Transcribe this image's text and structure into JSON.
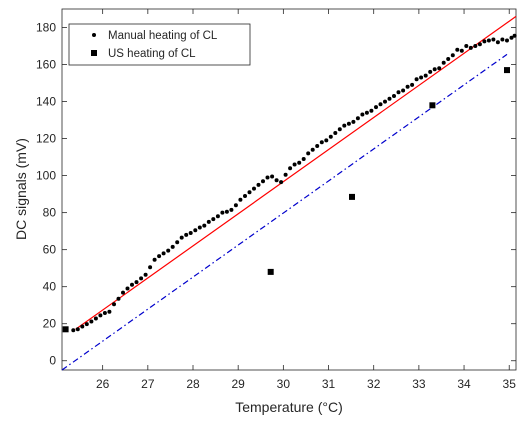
{
  "chart_data": {
    "type": "scatter",
    "xlabel": "Temperature (°C)",
    "ylabel": "DC signals (mV)",
    "xlim": [
      25.1,
      35.15
    ],
    "ylim": [
      -5,
      190
    ],
    "xticks": [
      26,
      27,
      28,
      29,
      30,
      31,
      32,
      33,
      34,
      35
    ],
    "yticks": [
      0,
      20,
      40,
      60,
      80,
      100,
      120,
      140,
      160,
      180
    ],
    "grid": false,
    "legend_position": "top-left",
    "colors": {
      "manual": "#000000",
      "us": "#000000",
      "fit_line": "#ff0000",
      "dash_dot_line": "#0000cc",
      "axes": "#262626"
    },
    "legend": [
      {
        "label": "Manual heating of CL",
        "marker": "dot"
      },
      {
        "label": "US heating of CL",
        "marker": "square"
      }
    ],
    "series": [
      {
        "name": "Manual heating of CL",
        "marker": "dot",
        "x": [
          25.35,
          25.45,
          25.55,
          25.65,
          25.75,
          25.85,
          25.95,
          26.05,
          26.15,
          26.25,
          26.35,
          26.45,
          26.55,
          26.65,
          26.75,
          26.85,
          26.95,
          27.05,
          27.15,
          27.25,
          27.35,
          27.45,
          27.55,
          27.65,
          27.75,
          27.85,
          27.95,
          28.05,
          28.15,
          28.25,
          28.35,
          28.45,
          28.55,
          28.65,
          28.75,
          28.85,
          28.95,
          29.05,
          29.15,
          29.25,
          29.35,
          29.45,
          29.55,
          29.65,
          29.75,
          29.85,
          29.95,
          30.05,
          30.15,
          30.25,
          30.35,
          30.45,
          30.55,
          30.65,
          30.75,
          30.85,
          30.95,
          31.05,
          31.15,
          31.25,
          31.35,
          31.45,
          31.55,
          31.65,
          31.75,
          31.85,
          31.95,
          32.05,
          32.15,
          32.25,
          32.35,
          32.45,
          32.55,
          32.65,
          32.75,
          32.85,
          32.95,
          33.05,
          33.15,
          33.25,
          33.35,
          33.45,
          33.55,
          33.65,
          33.75,
          33.85,
          33.95,
          34.05,
          34.15,
          34.25,
          34.35,
          34.45,
          34.55,
          34.65,
          34.75,
          34.85,
          34.95,
          35.05,
          35.12
        ],
        "y": [
          16.5,
          17.0,
          18.5,
          19.8,
          21.2,
          22.8,
          24.5,
          25.8,
          26.5,
          30.5,
          33.5,
          36.8,
          39.0,
          41.0,
          42.5,
          44.5,
          46.5,
          50.5,
          54.5,
          56.5,
          58.0,
          59.5,
          61.5,
          64.0,
          66.5,
          68.0,
          69.0,
          70.5,
          72.0,
          73.0,
          75.0,
          76.5,
          78.0,
          80.0,
          80.5,
          81.5,
          84.0,
          87.0,
          89.0,
          91.0,
          93.0,
          95.0,
          97.0,
          99.0,
          99.5,
          97.5,
          96.5,
          100.5,
          104.0,
          106.0,
          107.0,
          109.0,
          112.0,
          114.0,
          116.0,
          118.0,
          119.0,
          121.0,
          123.0,
          125.0,
          127.0,
          128.0,
          129.0,
          131.0,
          133.0,
          134.0,
          135.0,
          137.0,
          138.5,
          140.0,
          141.5,
          143.0,
          145.0,
          146.0,
          148.0,
          149.0,
          152.0,
          153.0,
          154.0,
          156.0,
          157.5,
          158.0,
          161.0,
          163.0,
          165.0,
          168.0,
          167.5,
          170.0,
          169.0,
          170.0,
          171.0,
          172.5,
          173.0,
          173.5,
          172.0,
          173.5,
          173.0,
          174.5,
          175.5
        ]
      },
      {
        "name": "US heating of CL",
        "marker": "square",
        "x": [
          25.18,
          29.72,
          31.52,
          33.3,
          34.95
        ],
        "y": [
          17.0,
          48.0,
          88.5,
          138.0,
          157.0
        ]
      }
    ],
    "lines": [
      {
        "style": "solid",
        "color": "red",
        "x": [
          25.4,
          35.15
        ],
        "y": [
          17.0,
          186.0
        ]
      },
      {
        "style": "dash-dot",
        "color": "blue",
        "x": [
          25.1,
          34.95
        ],
        "y": [
          -5.0,
          165.5
        ]
      }
    ]
  }
}
